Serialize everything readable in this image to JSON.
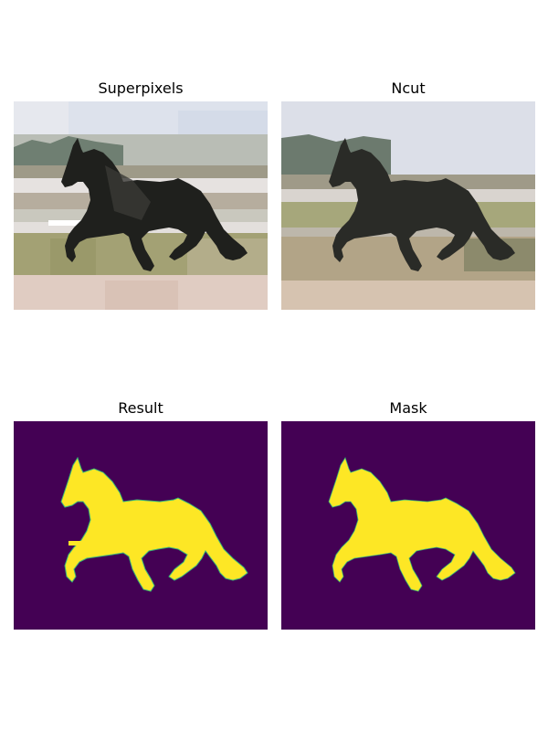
{
  "panels": [
    {
      "title": "Superpixels"
    },
    {
      "title": "Ncut"
    },
    {
      "title": "Result"
    },
    {
      "title": "Mask"
    }
  ],
  "colors": {
    "mask_background": "#440154",
    "mask_foreground": "#fde725",
    "mask_edge": "#35b779",
    "sky": "#dcdfe8",
    "fence": "#d9d4cf",
    "grass": "#a6a779",
    "sand": "#d6c3b0",
    "horse": "#2a2b27"
  }
}
